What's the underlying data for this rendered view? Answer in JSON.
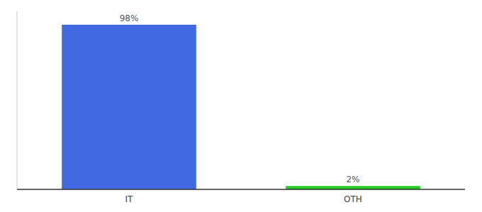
{
  "chart_data": {
    "type": "bar",
    "categories": [
      "IT",
      "OTH"
    ],
    "values": [
      98,
      2
    ],
    "value_labels": [
      "98%",
      "2%"
    ],
    "colors": [
      "#4169e1",
      "#22cc22"
    ],
    "ylim": [
      0,
      106
    ],
    "data_labels": true,
    "tick_labels": "x",
    "grid": false
  }
}
